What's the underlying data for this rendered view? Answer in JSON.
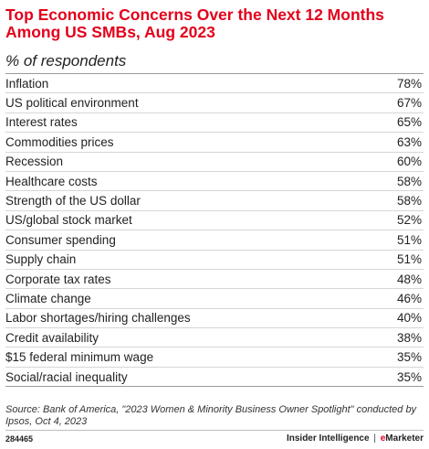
{
  "chart_data": {
    "type": "table",
    "title": "Top Economic Concerns Over the Next 12 Months Among US SMBs, Aug 2023",
    "subtitle": "% of respondents",
    "rows": [
      {
        "label": "Inflation",
        "value": 78,
        "display": "78%"
      },
      {
        "label": "US political environment",
        "value": 67,
        "display": "67%"
      },
      {
        "label": "Interest rates",
        "value": 65,
        "display": "65%"
      },
      {
        "label": "Commodities prices",
        "value": 63,
        "display": "63%"
      },
      {
        "label": "Recession",
        "value": 60,
        "display": "60%"
      },
      {
        "label": "Healthcare costs",
        "value": 58,
        "display": "58%"
      },
      {
        "label": "Strength of the US dollar",
        "value": 58,
        "display": "58%"
      },
      {
        "label": "US/global stock market",
        "value": 52,
        "display": "52%"
      },
      {
        "label": "Consumer spending",
        "value": 51,
        "display": "51%"
      },
      {
        "label": "Supply chain",
        "value": 51,
        "display": "51%"
      },
      {
        "label": "Corporate tax rates",
        "value": 48,
        "display": "48%"
      },
      {
        "label": "Climate change",
        "value": 46,
        "display": "46%"
      },
      {
        "label": "Labor shortages/hiring challenges",
        "value": 40,
        "display": "40%"
      },
      {
        "label": "Credit availability",
        "value": 38,
        "display": "38%"
      },
      {
        "label": "$15 federal minimum wage",
        "value": 35,
        "display": "35%"
      },
      {
        "label": "Social/racial inequality",
        "value": 35,
        "display": "35%"
      }
    ],
    "source": "Source: Bank of America, \"2023 Women & Minority Business Owner Spotlight\" conducted by Ipsos, Oct 4, 2023",
    "chart_id": "284465",
    "brand_left": "Insider Intelligence",
    "brand_separator": "|",
    "brand_e": "e",
    "brand_right": "Marketer"
  },
  "colors": {
    "title": "#e3001b",
    "text": "#222222",
    "rule": "#d6d6d6"
  }
}
